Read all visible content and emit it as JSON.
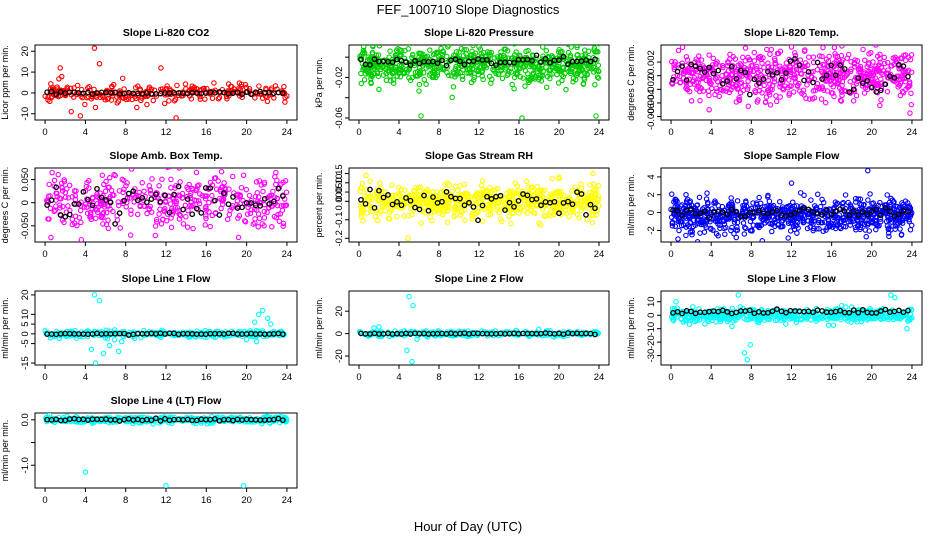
{
  "figure": {
    "title": "FEF_100710  Slope Diagnostics",
    "xlabel": "Hour of Day (UTC)"
  },
  "chart_data": [
    {
      "type": "scatter",
      "title": "Slope Li-820 CO2",
      "ylabel": "Licor ppm per min.",
      "xlim": [
        -1,
        25
      ],
      "ylim": [
        -13,
        23
      ],
      "yticks": [
        -10,
        0,
        10,
        20
      ],
      "xticks": [
        0,
        4,
        8,
        12,
        16,
        20,
        24
      ],
      "color": "#ff0000",
      "spread": 2.2,
      "ncolored": 260,
      "seed": 11,
      "outliers": [
        [
          4.9,
          21.5
        ],
        [
          0.3,
          -2
        ],
        [
          1.5,
          12
        ],
        [
          2.6,
          -9
        ],
        [
          3.5,
          -11
        ],
        [
          5.0,
          -7
        ],
        [
          5.4,
          14
        ],
        [
          7.7,
          7
        ],
        [
          9.1,
          -7
        ],
        [
          11.5,
          12
        ],
        [
          13.0,
          -12
        ],
        [
          23.7,
          3
        ]
      ],
      "series": [
        {
          "name": "black",
          "color": "#000000",
          "mean": 0.0,
          "spread": 0.35
        }
      ]
    },
    {
      "type": "scatter",
      "title": "Slope Li-820 Pressure",
      "ylabel": "kPa per min.",
      "xlim": [
        -1,
        25
      ],
      "ylim": [
        -0.062,
        0.012
      ],
      "yticks": [
        -0.06,
        -0.04,
        -0.02,
        0.0
      ],
      "ytickLabels": [
        "-0.06",
        "",
        "-0.02",
        ""
      ],
      "xticks": [
        0,
        4,
        8,
        12,
        16,
        20,
        24
      ],
      "color": "#00cc00",
      "spread": 0.009,
      "center": -0.007,
      "ncolored": 700,
      "seed": 23,
      "outliers": [
        [
          6.2,
          -0.058
        ],
        [
          16.3,
          -0.06
        ],
        [
          23.5,
          0.007
        ],
        [
          23.7,
          -0.058
        ],
        [
          0.5,
          0.005
        ],
        [
          12.0,
          0.01
        ]
      ],
      "series": [
        {
          "name": "black",
          "color": "#000000",
          "mean": -0.004,
          "spread": 0.002
        }
      ]
    },
    {
      "type": "scatter",
      "title": "Slope Li-820 Temp.",
      "ylabel": "degrees C per min.",
      "xlim": [
        -1,
        25
      ],
      "ylim": [
        -0.0065,
        0.0045
      ],
      "yticks": [
        -0.006,
        -0.004,
        -0.002,
        0.0,
        0.002
      ],
      "xticks": [
        0,
        4,
        8,
        12,
        16,
        20,
        24
      ],
      "color": "#ff00ff",
      "spread": 0.0018,
      "ncolored": 650,
      "seed": 37,
      "outliers": [
        [
          12.0,
          0.0042
        ],
        [
          23.8,
          -0.0055
        ],
        [
          3.8,
          -0.005
        ]
      ],
      "series": [
        {
          "name": "black",
          "color": "#000000",
          "mean": 0.0,
          "spread": 0.0012
        }
      ]
    },
    {
      "type": "scatter",
      "title": "Slope Amb. Box Temp.",
      "ylabel": "degrees C per min.",
      "xlim": [
        -1,
        25
      ],
      "ylim": [
        -0.085,
        0.075
      ],
      "yticks": [
        -0.05,
        0.0,
        0.05
      ],
      "xticks": [
        0,
        4,
        8,
        12,
        16,
        20,
        24
      ],
      "color": "#ff00ff",
      "spread": 0.03,
      "ncolored": 420,
      "seed": 41,
      "outliers": [
        [
          0.7,
          0.065
        ],
        [
          22.9,
          0.065
        ],
        [
          3.6,
          -0.08
        ],
        [
          19.2,
          -0.075
        ]
      ],
      "series": [
        {
          "name": "black",
          "color": "#000000",
          "mean": 0.0,
          "spread": 0.018
        }
      ]
    },
    {
      "type": "scatter",
      "title": "Slope Gas Stream RH",
      "ylabel": "percent per min.",
      "xlim": [
        -1,
        25
      ],
      "ylim": [
        -0.22,
        0.18
      ],
      "yticks": [
        -0.2,
        -0.1,
        0.0,
        0.05,
        0.1,
        0.15
      ],
      "ytickLabels": [
        "-0.2",
        "-0.1",
        "0.00",
        "0.05",
        "0.10",
        "0.15"
      ],
      "xticks": [
        0,
        4,
        8,
        12,
        16,
        20,
        24
      ],
      "color": "#ffff00",
      "spread": 0.045,
      "ncolored": 650,
      "seed": 53,
      "outliers": [
        [
          23.4,
          0.15
        ],
        [
          4.9,
          -0.2
        ],
        [
          0.7,
          0.14
        ],
        [
          20.0,
          0.13
        ]
      ],
      "series": [
        {
          "name": "black",
          "color": "#000000",
          "mean": 0.0,
          "spread": 0.035
        }
      ]
    },
    {
      "type": "scatter",
      "title": "Slope Sample Flow",
      "ylabel": "ml/min per min.",
      "xlim": [
        -1,
        25
      ],
      "ylim": [
        -3.3,
        5.0
      ],
      "yticks": [
        -2,
        0,
        2,
        4
      ],
      "xticks": [
        0,
        4,
        8,
        12,
        16,
        20,
        24
      ],
      "color": "#0000ff",
      "spread": 0.9,
      "center": -0.35,
      "ncolored": 750,
      "seed": 67,
      "outliers": [
        [
          12.0,
          3.3
        ],
        [
          19.6,
          4.7
        ],
        [
          6.5,
          -2.8
        ],
        [
          7.3,
          -2.4
        ]
      ],
      "series": [
        {
          "name": "black",
          "color": "#000000",
          "mean": 0.0,
          "spread": 0.3
        }
      ]
    },
    {
      "type": "scatter",
      "title": "Slope Line 1 Flow",
      "ylabel": "ml/min per min.",
      "xlim": [
        -1,
        25
      ],
      "ylim": [
        -16,
        22
      ],
      "yticks": [
        -15,
        -5,
        0,
        5,
        10,
        20
      ],
      "xticks": [
        0,
        4,
        8,
        12,
        16,
        20,
        24
      ],
      "color": "#00ffff",
      "spread": 0.9,
      "ncolored": 280,
      "seed": 71,
      "outliers": [
        [
          4.9,
          20
        ],
        [
          5.4,
          17
        ],
        [
          4.6,
          -8
        ],
        [
          5.0,
          -15
        ],
        [
          5.8,
          -10
        ],
        [
          6.4,
          -6
        ],
        [
          6.9,
          -3
        ],
        [
          7.3,
          -9
        ],
        [
          7.6,
          -4
        ],
        [
          21.2,
          10
        ],
        [
          21.6,
          12
        ],
        [
          22.1,
          8
        ],
        [
          22.4,
          5
        ],
        [
          20.8,
          6
        ],
        [
          21.0,
          -4
        ],
        [
          20.0,
          -3
        ]
      ],
      "series": [
        {
          "name": "black",
          "color": "#000000",
          "mean": 0.0,
          "spread": 0.15
        }
      ]
    },
    {
      "type": "scatter",
      "title": "Slope Line 2 Flow",
      "ylabel": "ml/min per min.",
      "xlim": [
        -1,
        25
      ],
      "ylim": [
        -28,
        38
      ],
      "yticks": [
        -20,
        0,
        20
      ],
      "xticks": [
        0,
        4,
        8,
        12,
        16,
        20,
        24
      ],
      "color": "#00ffff",
      "spread": 1.2,
      "ncolored": 260,
      "seed": 79,
      "outliers": [
        [
          5.0,
          33
        ],
        [
          5.4,
          25
        ],
        [
          5.3,
          -25
        ],
        [
          4.8,
          -15
        ],
        [
          5.8,
          -5
        ],
        [
          1.5,
          5
        ],
        [
          2.0,
          6
        ]
      ],
      "series": [
        {
          "name": "black",
          "color": "#000000",
          "mean": 0.0,
          "spread": 0.3
        }
      ]
    },
    {
      "type": "scatter",
      "title": "Slope Line 3 Flow",
      "ylabel": "ml/min per min.",
      "xlim": [
        -1,
        25
      ],
      "ylim": [
        -37,
        18
      ],
      "yticks": [
        -30,
        -20,
        -10,
        0,
        10
      ],
      "xticks": [
        0,
        4,
        8,
        12,
        16,
        20,
        24
      ],
      "color": "#00ffff",
      "spread": 2.5,
      "center": 0.0,
      "ncolored": 520,
      "seed": 83,
      "outliers": [
        [
          7.6,
          -33
        ],
        [
          7.3,
          -28
        ],
        [
          7.9,
          -22
        ],
        [
          6.7,
          15
        ],
        [
          21.9,
          15
        ],
        [
          22.3,
          13
        ],
        [
          0.5,
          10
        ],
        [
          23.5,
          -10
        ]
      ],
      "series": [
        {
          "name": "black",
          "color": "#000000",
          "mean": 2.5,
          "spread": 0.8
        }
      ]
    },
    {
      "type": "scatter",
      "title": "Slope Line 4 (LT) Flow",
      "ylabel": "ml/min per min.",
      "xlim": [
        -1,
        25
      ],
      "ylim": [
        -1.5,
        0.15
      ],
      "yticks": [
        -1.0,
        -0.5,
        0.0
      ],
      "ytickLabels": [
        "-1.0",
        "",
        "0.0"
      ],
      "xticks": [
        0,
        4,
        8,
        12,
        16,
        20,
        24
      ],
      "color": "#00ffff",
      "spread": 0.035,
      "ncolored": 450,
      "seed": 97,
      "outliers": [
        [
          4.0,
          -1.15
        ],
        [
          12.0,
          -1.45
        ],
        [
          19.7,
          -1.45
        ]
      ],
      "series": [
        {
          "name": "black",
          "color": "#000000",
          "mean": 0.0,
          "spread": 0.015
        }
      ]
    }
  ]
}
